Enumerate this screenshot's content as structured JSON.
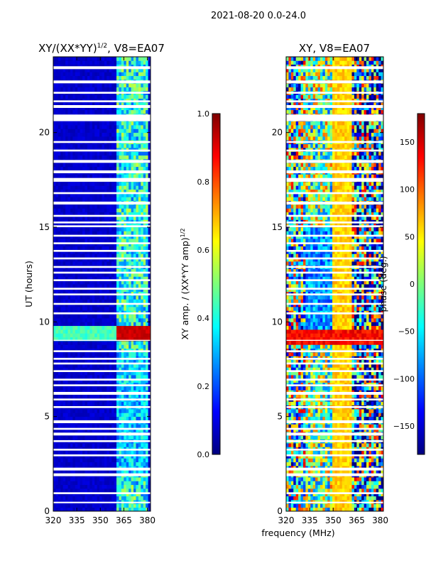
{
  "chart_data": {
    "suptitle": "2021-08-20 0.0-24.0",
    "x_axis_label": "frequency (MHz)",
    "panels": [
      {
        "type": "heatmap",
        "title": "XY/(XX*YY)",
        "title_exponent": "1/2",
        "title_suffix": ", V8=EA07",
        "xlim": [
          320,
          382
        ],
        "xticks": [
          320,
          335,
          350,
          365,
          380
        ],
        "ylim": [
          0,
          24
        ],
        "yticks": [
          0,
          5,
          10,
          15,
          20
        ],
        "ylabel": "UT (hours)",
        "colormap": "jet",
        "colorbar": {
          "label": "XY amp. / (XX*YY amp)",
          "label_exponent": "1/2",
          "range": [
            0.0,
            1.0
          ],
          "ticks": [
            "0.0",
            "0.2",
            "0.4",
            "0.6",
            "0.8",
            "1.0"
          ]
        },
        "description_values": {
          "background_level": 0.05,
          "active_band_mhz": [
            361,
            380
          ],
          "active_band_level": 0.45,
          "high_amp_time_range_hours": [
            9.0,
            9.8
          ],
          "high_amp_level": 0.95
        }
      },
      {
        "type": "heatmap",
        "title": "XY, V8=EA07",
        "xlim": [
          320,
          382
        ],
        "xticks": [
          320,
          335,
          350,
          365,
          380
        ],
        "ylim": [
          0,
          24
        ],
        "yticks": [
          0,
          5,
          10,
          15,
          20
        ],
        "colormap": "jet",
        "colorbar": {
          "label": "phase (deg.)",
          "range": [
            -180,
            180
          ],
          "ticks": [
            "150",
            "100",
            "50",
            "0",
            "−50",
            "−100",
            "−150"
          ]
        }
      }
    ],
    "gap_bands_hours": [
      [
        0.42,
        0.5
      ],
      [
        0.9,
        1.0
      ],
      [
        1.85,
        2.0
      ],
      [
        2.15,
        2.3
      ],
      [
        2.9,
        3.0
      ],
      [
        3.2,
        3.3
      ],
      [
        3.65,
        3.75
      ],
      [
        4.0,
        4.15
      ],
      [
        4.3,
        4.4
      ],
      [
        4.65,
        4.8
      ],
      [
        5.45,
        5.55
      ],
      [
        5.85,
        5.95
      ],
      [
        6.15,
        6.3
      ],
      [
        6.6,
        6.7
      ],
      [
        6.9,
        7.0
      ],
      [
        7.35,
        7.45
      ],
      [
        7.75,
        7.85
      ],
      [
        8.0,
        8.1
      ],
      [
        8.4,
        8.5
      ],
      [
        9.0,
        9.05
      ],
      [
        10.4,
        10.5
      ],
      [
        10.9,
        11.0
      ],
      [
        11.4,
        11.5
      ],
      [
        11.7,
        11.8
      ],
      [
        12.15,
        12.25
      ],
      [
        12.55,
        12.65
      ],
      [
        12.85,
        12.95
      ],
      [
        13.3,
        13.4
      ],
      [
        13.7,
        13.8
      ],
      [
        14.1,
        14.2
      ],
      [
        14.5,
        14.6
      ],
      [
        15.0,
        15.1
      ],
      [
        15.2,
        15.3
      ],
      [
        15.55,
        15.65
      ],
      [
        16.2,
        16.35
      ],
      [
        16.75,
        16.85
      ],
      [
        17.4,
        17.6
      ],
      [
        17.85,
        18.0
      ],
      [
        18.4,
        18.55
      ],
      [
        19.0,
        19.1
      ],
      [
        19.45,
        19.55
      ],
      [
        20.6,
        20.95
      ],
      [
        21.3,
        21.45
      ],
      [
        21.6,
        21.7
      ],
      [
        22.05,
        22.15
      ],
      [
        22.6,
        22.75
      ],
      [
        23.35,
        23.5
      ]
    ],
    "colors": {
      "jet_dark_blue": "#00007f",
      "background": "#ffffff"
    }
  }
}
